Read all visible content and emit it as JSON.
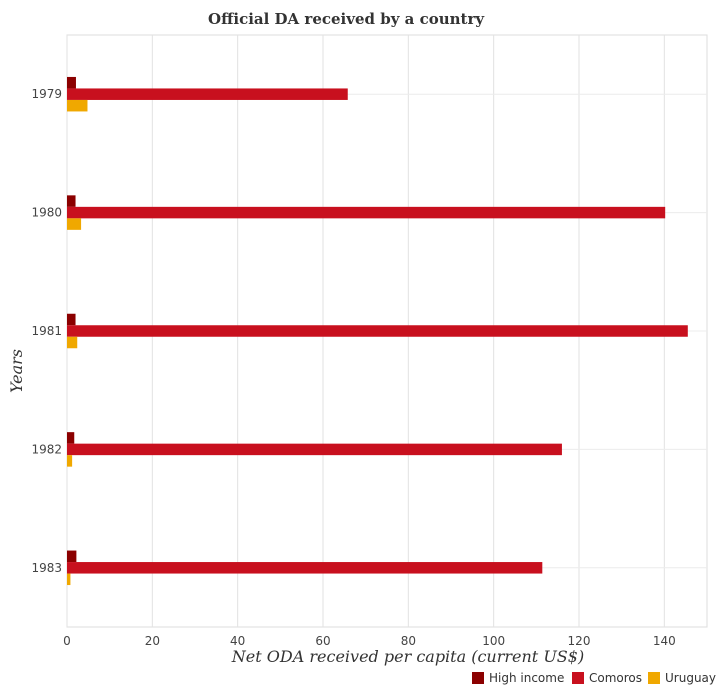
{
  "chart_data": {
    "type": "bar",
    "orientation": "horizontal",
    "title": "Official DA received by a country",
    "xlabel": "Net ODA received per capita (current US$)",
    "ylabel": "Years",
    "categories": [
      "1979",
      "1980",
      "1981",
      "1982",
      "1983"
    ],
    "xlim": [
      0,
      150
    ],
    "xticks": [
      0,
      20,
      40,
      60,
      80,
      100,
      120,
      140
    ],
    "series": [
      {
        "name": "High income",
        "color": "#8b0000",
        "values": [
          2.1,
          2.0,
          2.0,
          1.7,
          2.2
        ]
      },
      {
        "name": "Comoros",
        "color": "#c8101e",
        "values": [
          65.8,
          140.2,
          145.5,
          116.0,
          111.4
        ]
      },
      {
        "name": "Uruguay",
        "color": "#f0a800",
        "values": [
          4.8,
          3.3,
          2.4,
          1.2,
          0.8
        ]
      }
    ],
    "grid": true,
    "legend_position": "bottom-right"
  }
}
